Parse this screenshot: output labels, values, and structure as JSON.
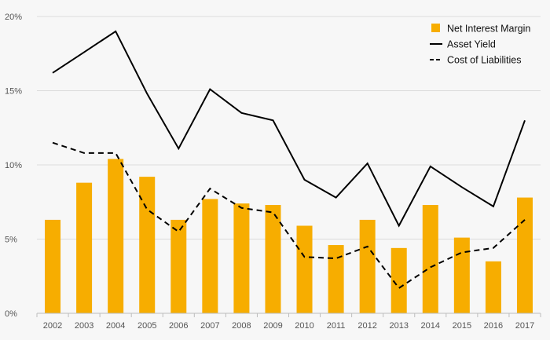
{
  "chart_data": {
    "type": "bar",
    "title": "",
    "xlabel": "",
    "ylabel": "",
    "ylim": [
      0,
      20
    ],
    "y_ticks": [
      "0%",
      "5%",
      "10%",
      "15%",
      "20%"
    ],
    "y_tick_values": [
      0,
      5,
      10,
      15,
      20
    ],
    "grid": "horizontal",
    "legend_position": "top-right",
    "categories": [
      "2002",
      "2003",
      "2004",
      "2005",
      "2006",
      "2007",
      "2008",
      "2009",
      "2010",
      "2011",
      "2012",
      "2013",
      "2014",
      "2015",
      "2016",
      "2017"
    ],
    "series": [
      {
        "name": "Net Interest Margin",
        "kind": "bar",
        "color": "#f7ad00",
        "values": [
          6.3,
          8.8,
          10.4,
          9.2,
          6.3,
          7.7,
          7.4,
          7.3,
          5.9,
          4.6,
          6.3,
          4.4,
          7.3,
          5.1,
          3.5,
          7.8
        ]
      },
      {
        "name": "Asset Yield",
        "kind": "line",
        "style": "solid",
        "color": "#000000",
        "values": [
          16.2,
          17.6,
          19.0,
          14.8,
          11.1,
          15.1,
          13.5,
          13.0,
          9.0,
          7.8,
          10.1,
          5.9,
          9.9,
          8.5,
          7.2,
          13.0
        ]
      },
      {
        "name": "Cost of Liabilities",
        "kind": "line",
        "style": "dashed",
        "color": "#000000",
        "values": [
          11.5,
          10.8,
          10.8,
          7.0,
          5.5,
          8.4,
          7.1,
          6.8,
          3.8,
          3.7,
          4.5,
          1.7,
          3.1,
          4.1,
          4.4,
          6.3
        ]
      }
    ]
  }
}
